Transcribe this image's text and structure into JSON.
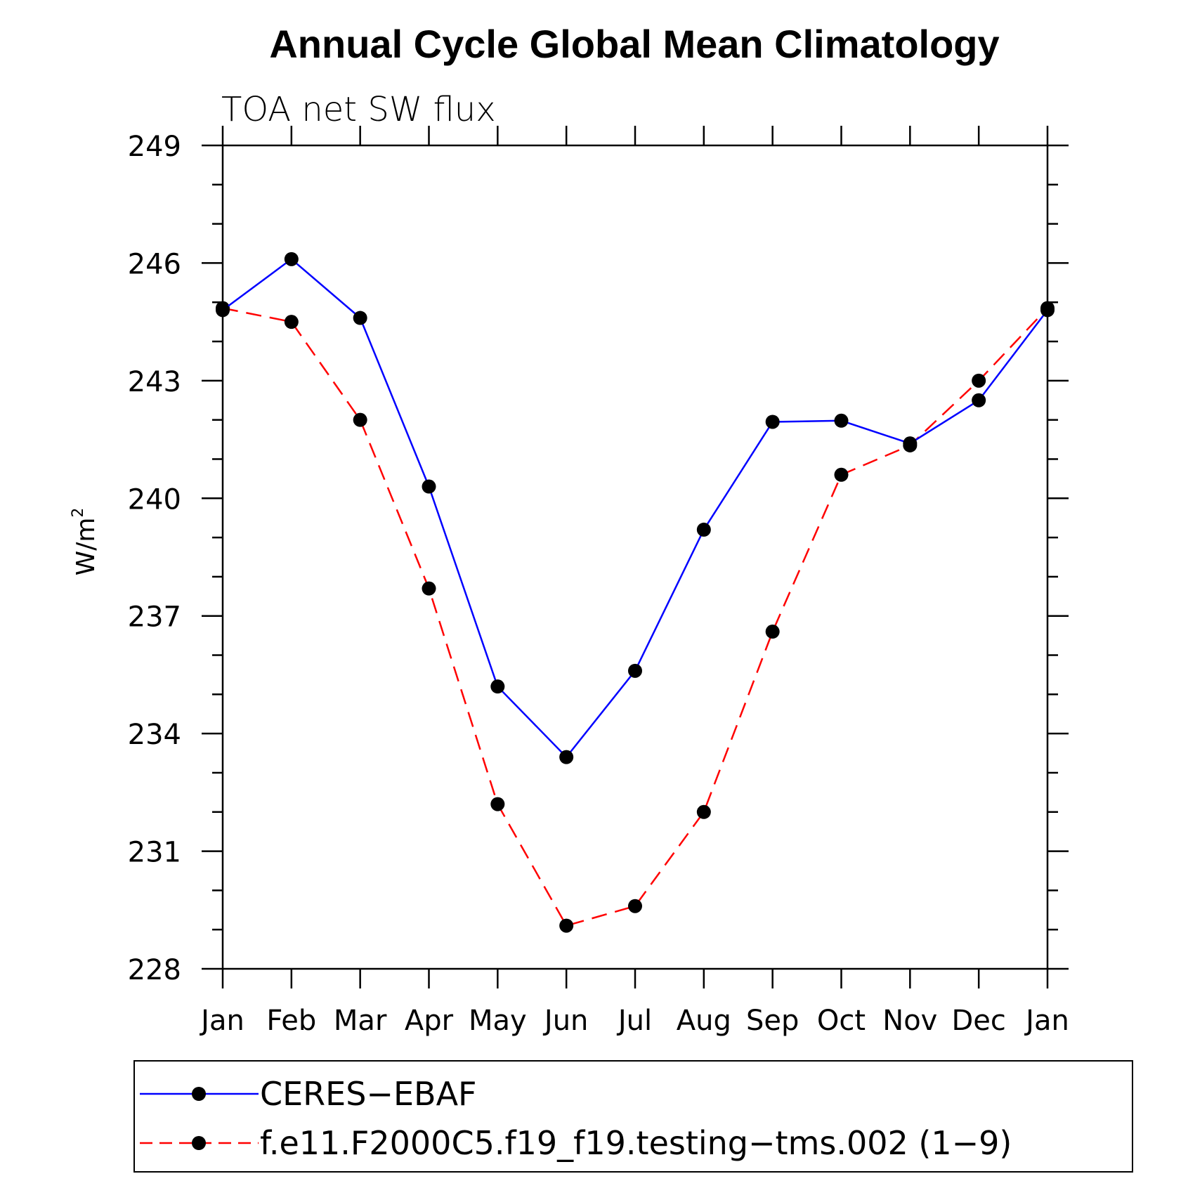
{
  "chart_data": {
    "type": "line",
    "title": "Annual Cycle Global Mean Climatology",
    "subtitle": "TOA net SW flux",
    "ylabel": "W/m",
    "ylabel_sup": "2",
    "xlabel": "",
    "ylim": [
      228,
      249
    ],
    "yticks": [
      "249",
      "246",
      "243",
      "240",
      "237",
      "234",
      "231",
      "228"
    ],
    "categories": [
      "Jan",
      "Feb",
      "Mar",
      "Apr",
      "May",
      "Jun",
      "Jul",
      "Aug",
      "Sep",
      "Oct",
      "Nov",
      "Dec",
      "Jan"
    ],
    "grid": false,
    "legend_position": "bottom",
    "series": [
      {
        "name": "CERES−EBAF",
        "color": "#0000ff",
        "dash": "solid",
        "values": [
          244.8,
          246.1,
          244.6,
          240.3,
          235.2,
          233.4,
          235.6,
          239.2,
          241.95,
          241.98,
          241.4,
          242.5,
          244.8
        ]
      },
      {
        "name": "f.e11.F2000C5.f19_f19.testing−tms.002 (1−9)",
        "color": "#ff0000",
        "dash": "dashed",
        "values": [
          244.85,
          244.5,
          242.0,
          237.7,
          232.2,
          229.1,
          229.6,
          232.0,
          236.6,
          240.6,
          241.35,
          243.0,
          244.85
        ]
      }
    ]
  }
}
